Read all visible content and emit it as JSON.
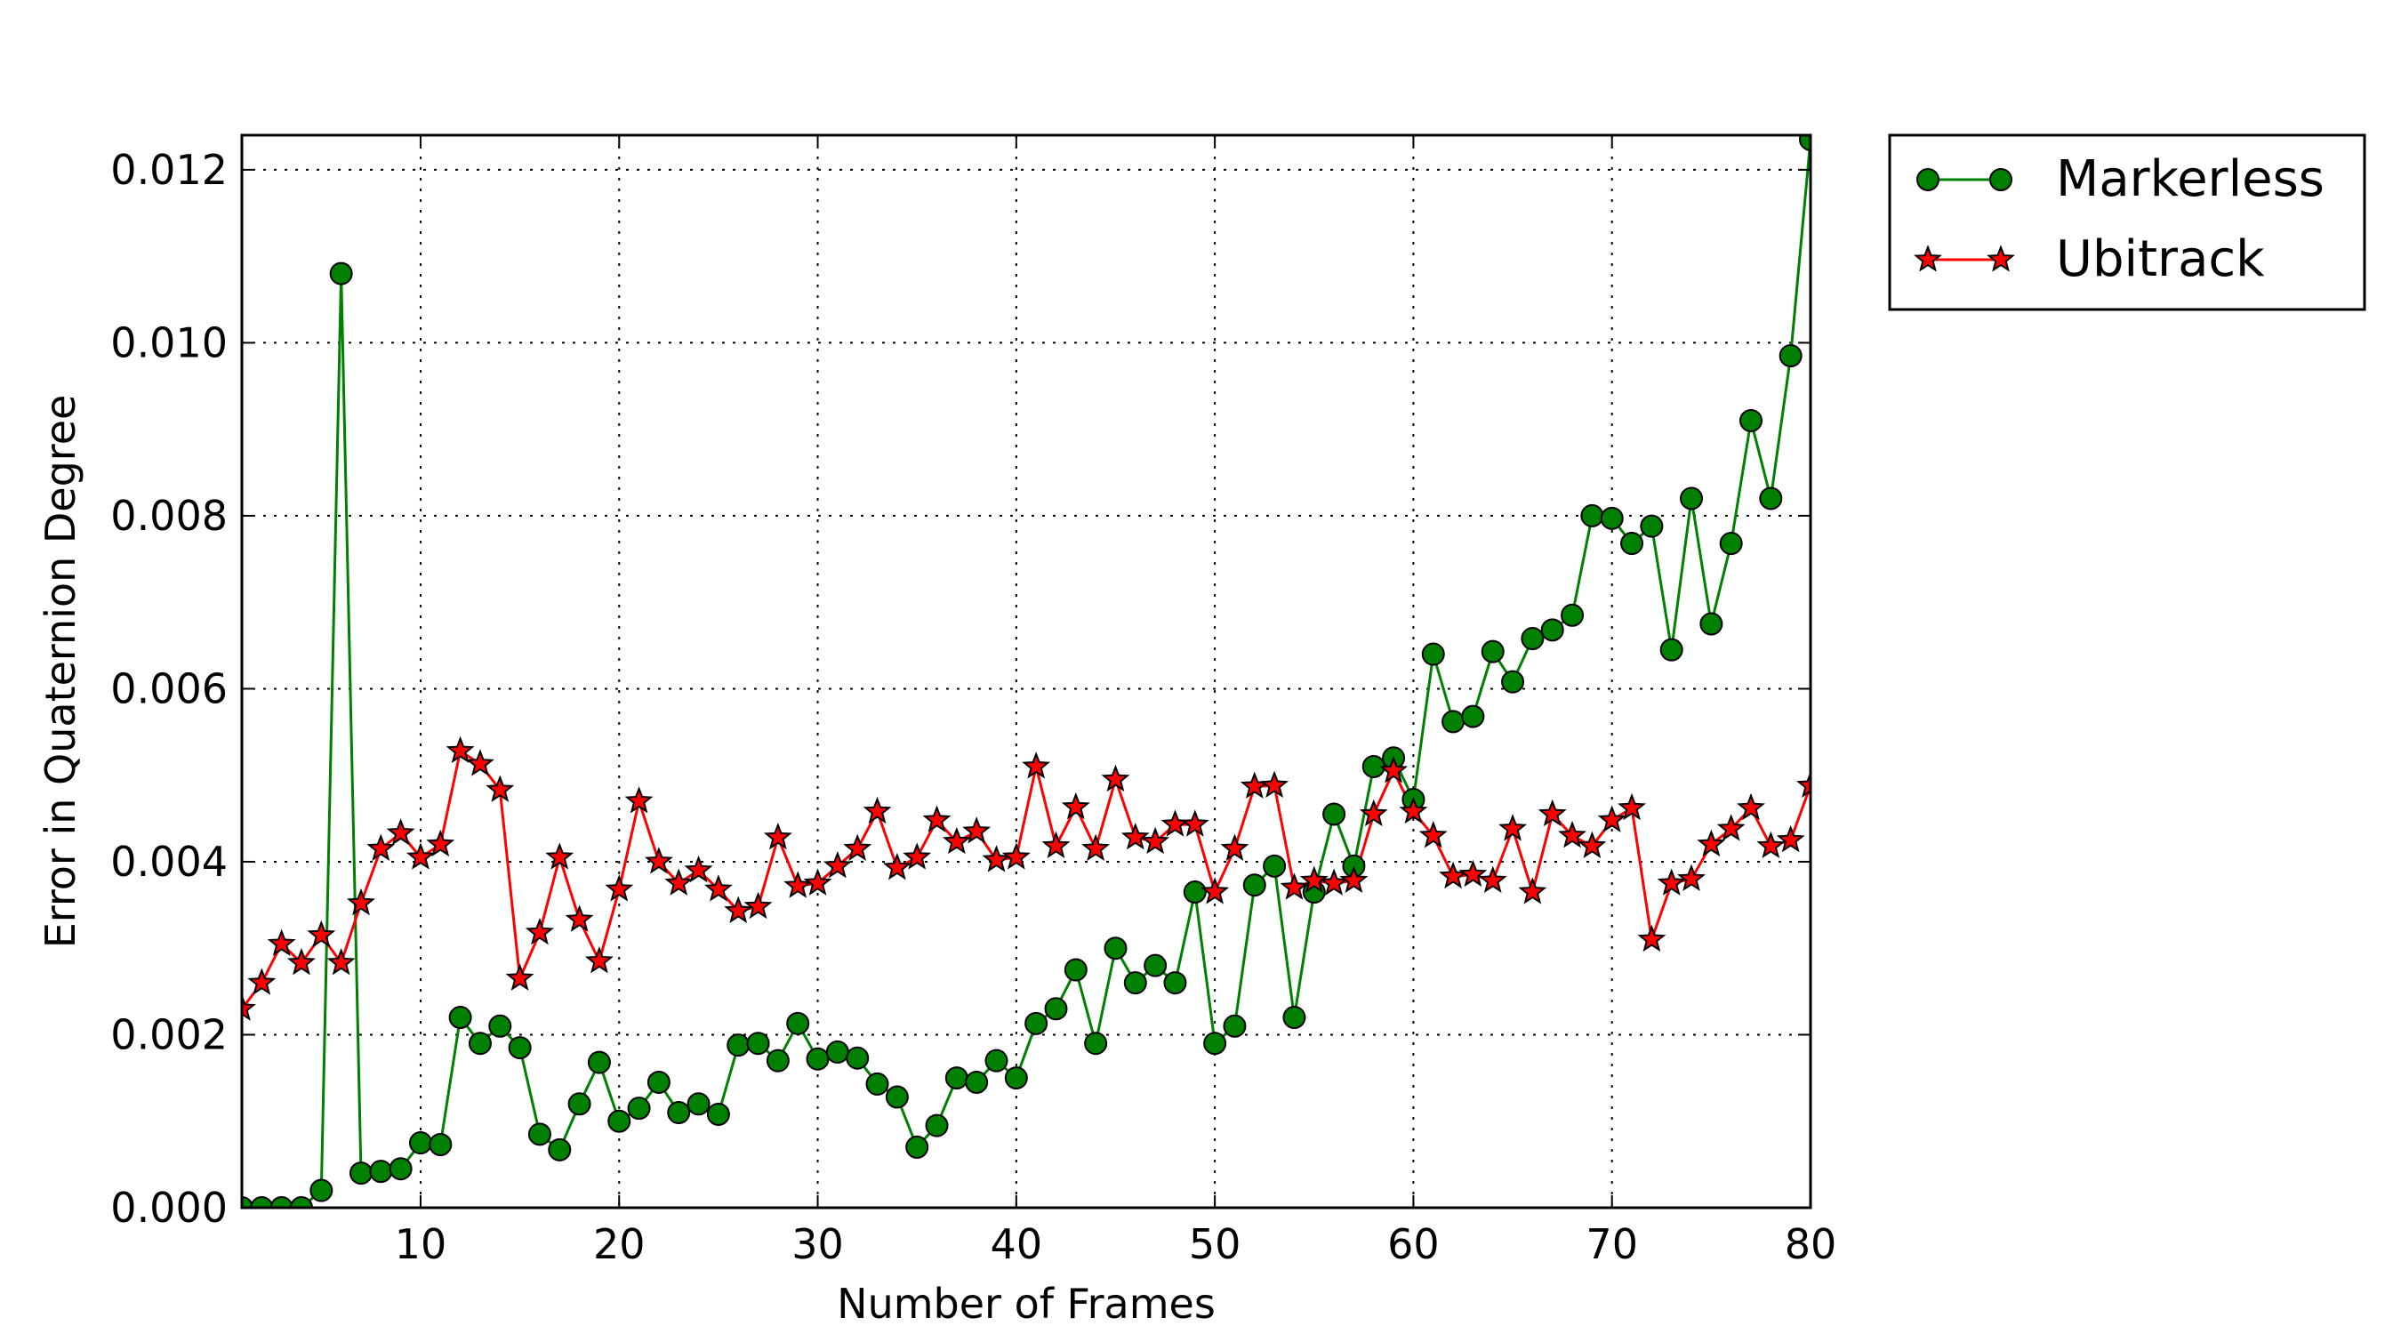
{
  "chart_data": {
    "type": "line",
    "xlabel": "Number of Frames",
    "ylabel": "Error in Quaternion Degree",
    "xlim": [
      1,
      80
    ],
    "ylim": [
      0,
      0.0124
    ],
    "xticks": [
      10,
      20,
      30,
      40,
      50,
      60,
      70,
      80
    ],
    "xtick_labels": [
      "10",
      "20",
      "30",
      "40",
      "50",
      "60",
      "70",
      "80"
    ],
    "yticks": [
      0,
      0.002,
      0.004,
      0.006,
      0.008,
      0.01,
      0.012
    ],
    "ytick_labels": [
      "0.000",
      "0.002",
      "0.004",
      "0.006",
      "0.008",
      "0.010",
      "0.012"
    ],
    "grid": true,
    "legend_position": "outside-top-right",
    "x": [
      1,
      2,
      3,
      4,
      5,
      6,
      7,
      8,
      9,
      10,
      11,
      12,
      13,
      14,
      15,
      16,
      17,
      18,
      19,
      20,
      21,
      22,
      23,
      24,
      25,
      26,
      27,
      28,
      29,
      30,
      31,
      32,
      33,
      34,
      35,
      36,
      37,
      38,
      39,
      40,
      41,
      42,
      43,
      44,
      45,
      46,
      47,
      48,
      49,
      50,
      51,
      52,
      53,
      54,
      55,
      56,
      57,
      58,
      59,
      60,
      61,
      62,
      63,
      64,
      65,
      66,
      67,
      68,
      69,
      70,
      71,
      72,
      73,
      74,
      75,
      76,
      77,
      78,
      79,
      80
    ],
    "series": [
      {
        "name": "Markerless",
        "color": "#008000",
        "marker": "circle",
        "values": [
          0.0,
          0.0,
          0.0,
          0.0,
          0.0002,
          0.0108,
          0.0004,
          0.00042,
          0.00045,
          0.00075,
          0.00073,
          0.0022,
          0.0019,
          0.0021,
          0.00185,
          0.00085,
          0.00067,
          0.0012,
          0.00168,
          0.001,
          0.00115,
          0.00145,
          0.0011,
          0.0012,
          0.00108,
          0.00188,
          0.0019,
          0.0017,
          0.00213,
          0.00172,
          0.0018,
          0.00173,
          0.00143,
          0.00128,
          0.0007,
          0.00095,
          0.0015,
          0.00145,
          0.0017,
          0.0015,
          0.00213,
          0.0023,
          0.00275,
          0.0019,
          0.003,
          0.0026,
          0.0028,
          0.0026,
          0.00365,
          0.0019,
          0.0021,
          0.00373,
          0.00395,
          0.0022,
          0.00365,
          0.00455,
          0.00395,
          0.0051,
          0.0052,
          0.00472,
          0.0064,
          0.00562,
          0.00568,
          0.00643,
          0.00608,
          0.00658,
          0.00668,
          0.00685,
          0.008,
          0.00797,
          0.00768,
          0.00788,
          0.00645,
          0.0082,
          0.00675,
          0.00768,
          0.0091,
          0.0082,
          0.00985,
          0.01235
        ]
      },
      {
        "name": "Ubitrack",
        "color": "#ff0000",
        "marker": "star",
        "values": [
          0.0023,
          0.0026,
          0.00305,
          0.00283,
          0.00315,
          0.00283,
          0.00352,
          0.00415,
          0.00433,
          0.00405,
          0.0042,
          0.00528,
          0.00513,
          0.00483,
          0.00265,
          0.00318,
          0.00405,
          0.00333,
          0.00285,
          0.00368,
          0.0047,
          0.004,
          0.00375,
          0.0039,
          0.00368,
          0.00343,
          0.00348,
          0.00428,
          0.00372,
          0.00375,
          0.00395,
          0.00415,
          0.00458,
          0.00393,
          0.00405,
          0.00448,
          0.00423,
          0.00435,
          0.00402,
          0.00405,
          0.0051,
          0.00418,
          0.00463,
          0.00415,
          0.00495,
          0.00428,
          0.00423,
          0.00443,
          0.00443,
          0.00365,
          0.00415,
          0.00487,
          0.00488,
          0.0037,
          0.00378,
          0.00375,
          0.00378,
          0.00455,
          0.00505,
          0.00458,
          0.0043,
          0.00383,
          0.00385,
          0.00378,
          0.00438,
          0.00365,
          0.00455,
          0.0043,
          0.00418,
          0.00448,
          0.00462,
          0.0031,
          0.00375,
          0.0038,
          0.0042,
          0.00438,
          0.00462,
          0.00418,
          0.00425,
          0.00488
        ]
      }
    ]
  }
}
